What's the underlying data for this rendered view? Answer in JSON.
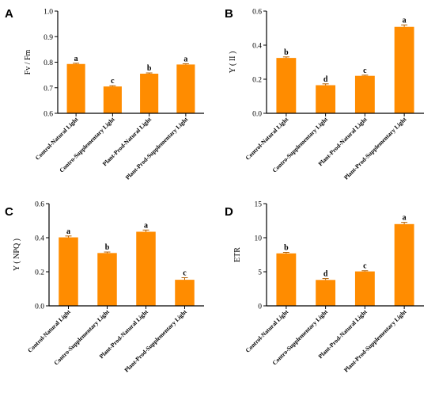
{
  "chart_data": [
    {
      "panel_label": "A",
      "type": "bar",
      "ylabel": "Fv / Fm",
      "ylim": [
        0.6,
        1.0
      ],
      "yticks": [
        "0.6",
        "0.7",
        "0.8",
        "0.9",
        "1.0"
      ],
      "categories": [
        "Control-Natural Light",
        "Contro-Supplementary Light",
        "Plant-Prod-Natural Light",
        "Plant-Prod-Supplementary Light"
      ],
      "values": [
        0.793,
        0.705,
        0.755,
        0.791
      ],
      "errors": [
        0.003,
        0.003,
        0.003,
        0.003
      ],
      "letters": [
        "a",
        "c",
        "b",
        "a"
      ],
      "color": "#FF8C00"
    },
    {
      "panel_label": "B",
      "type": "bar",
      "ylabel": "Y ( II )",
      "ylim": [
        0.0,
        0.6
      ],
      "yticks": [
        "0.0",
        "0.2",
        "0.4",
        "0.6"
      ],
      "categories": [
        "Control-Natural Light",
        "Contro-Supplementary Light",
        "Plant-Prod-Natural Light",
        "Plant-Prod-Supplementary Light"
      ],
      "values": [
        0.325,
        0.165,
        0.22,
        0.508
      ],
      "errors": [
        0.006,
        0.008,
        0.004,
        0.01
      ],
      "letters": [
        "b",
        "d",
        "c",
        "a"
      ],
      "color": "#FF8C00"
    },
    {
      "panel_label": "C",
      "type": "bar",
      "ylabel": "Y ( NPQ )",
      "ylim": [
        0.0,
        0.6
      ],
      "yticks": [
        "0.0",
        "0.2",
        "0.4",
        "0.6"
      ],
      "categories": [
        "Control-Natural Light",
        "Contro-Supplementary Light",
        "Plant-Prod-Natural Light",
        "Plant-Prod-Supplementary Light"
      ],
      "values": [
        0.402,
        0.31,
        0.435,
        0.153
      ],
      "errors": [
        0.008,
        0.006,
        0.01,
        0.012
      ],
      "letters": [
        "a",
        "b",
        "a",
        "c"
      ],
      "color": "#FF8C00"
    },
    {
      "panel_label": "D",
      "type": "bar",
      "ylabel": "ETR",
      "ylim": [
        0,
        15
      ],
      "yticks": [
        "0",
        "5",
        "10",
        "15"
      ],
      "categories": [
        "Control-Natural Light",
        "Contro-Supplementary Light",
        "Plant-Prod-Natural Light",
        "Plant-Prod-Supplementary Light"
      ],
      "values": [
        7.7,
        3.8,
        5.05,
        12.0
      ],
      "errors": [
        0.15,
        0.2,
        0.1,
        0.25
      ],
      "letters": [
        "b",
        "d",
        "c",
        "a"
      ],
      "color": "#FF8C00"
    }
  ]
}
